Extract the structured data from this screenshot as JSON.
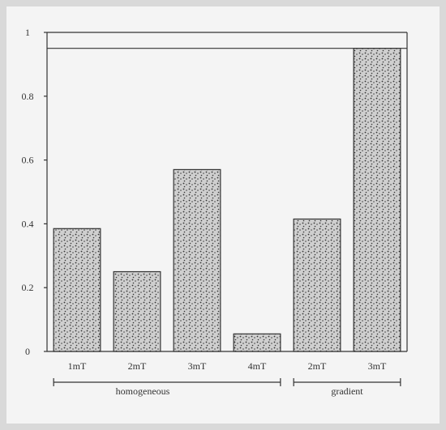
{
  "chart_data": {
    "type": "bar",
    "title": "",
    "xlabel": "",
    "ylabel": "",
    "ylim": [
      0,
      1
    ],
    "yticks": [
      "0",
      "0.2",
      "0.4",
      "0.6",
      "0.8",
      "1"
    ],
    "categories": [
      "1mT",
      "2mT",
      "3mT",
      "4mT",
      "2mT",
      "3mT"
    ],
    "values": [
      0.385,
      0.25,
      0.57,
      0.055,
      0.415,
      0.95
    ],
    "groups": [
      {
        "label": "homogeneous",
        "start_index": 0,
        "end_index": 3
      },
      {
        "label": "gradient",
        "start_index": 4,
        "end_index": 5
      }
    ],
    "reference_line": 0.95,
    "bar_fill": "#c8c8c8",
    "bar_dots": "#333333",
    "grid": false,
    "legend": "none"
  }
}
